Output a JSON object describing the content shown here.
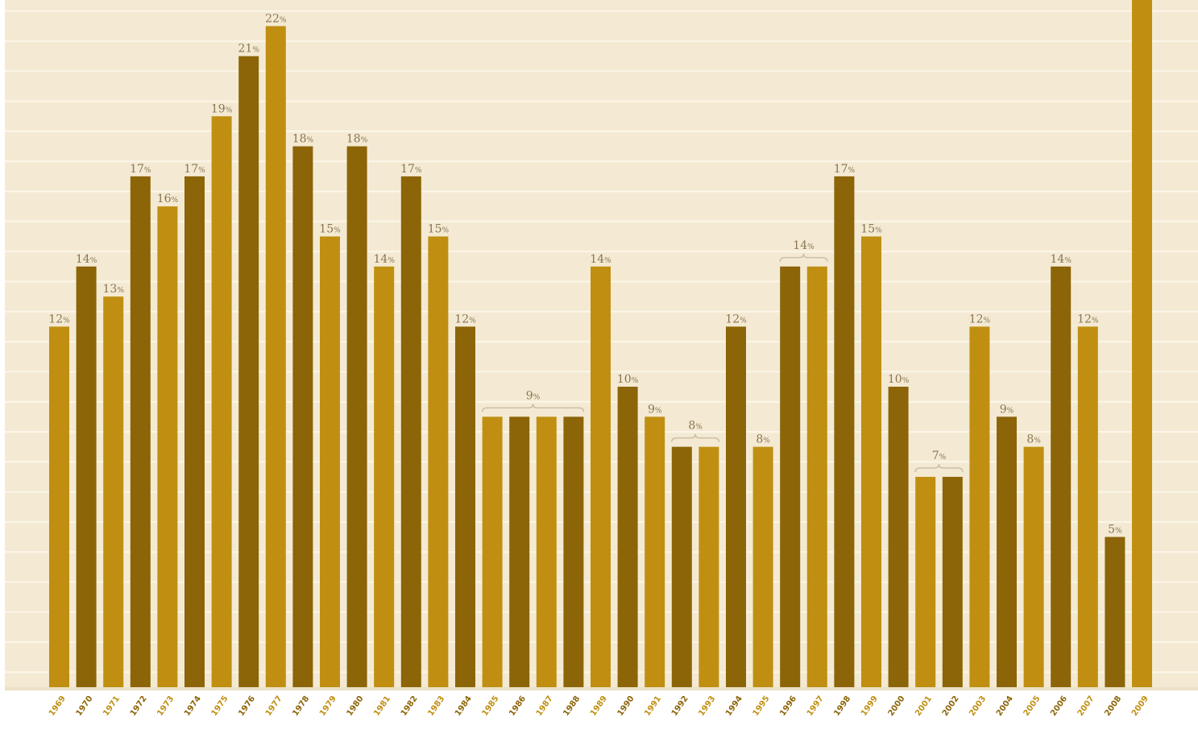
{
  "chart_data": {
    "type": "bar",
    "title": "",
    "xlabel": "",
    "ylabel": "",
    "ylim": [
      0,
      23
    ],
    "grid": true,
    "categories": [
      "1969",
      "1970",
      "1971",
      "1972",
      "1973",
      "1974",
      "1975",
      "1976",
      "1977",
      "1978",
      "1979",
      "1980",
      "1981",
      "1982",
      "1983",
      "1984",
      "1985",
      "1986",
      "1987",
      "1988",
      "1989",
      "1990",
      "1991",
      "1992",
      "1993",
      "1994",
      "1995",
      "1996",
      "1997",
      "1998",
      "1999",
      "2000",
      "2001",
      "2002",
      "2003",
      "2004",
      "2005",
      "2006",
      "2007",
      "2008",
      "2009"
    ],
    "values": [
      12,
      14,
      13,
      17,
      16,
      17,
      19,
      21,
      22,
      18,
      15,
      18,
      14,
      17,
      15,
      12,
      9,
      9,
      9,
      9,
      14,
      10,
      9,
      8,
      8,
      12,
      8,
      14,
      14,
      17,
      15,
      10,
      7,
      7,
      12,
      9,
      8,
      14,
      12,
      5,
      23
    ],
    "value_labels": [
      "12",
      "14",
      "13",
      "17",
      "16",
      "17",
      "19",
      "21",
      "22",
      "18",
      "15",
      "18",
      "14",
      "17",
      "15",
      "12",
      "",
      "",
      "",
      "",
      "14",
      "10",
      "9",
      "",
      "",
      "12",
      "8",
      "",
      "",
      "17",
      "15",
      "10",
      "",
      "",
      "12",
      "9",
      "8",
      "14",
      "12",
      "5",
      ""
    ],
    "label_unit": "%",
    "shades": [
      "light",
      "dark",
      "light",
      "dark",
      "light",
      "dark",
      "light",
      "dark",
      "light",
      "dark",
      "light",
      "dark",
      "light",
      "dark",
      "light",
      "dark",
      "light",
      "dark",
      "light",
      "dark",
      "light",
      "dark",
      "light",
      "dark",
      "light",
      "dark",
      "light",
      "dark",
      "light",
      "dark",
      "light",
      "dark",
      "light",
      "dark",
      "light",
      "dark",
      "light",
      "dark",
      "light",
      "dark",
      "light"
    ],
    "groups": [
      {
        "start": "1985",
        "end": "1988",
        "label": "9"
      },
      {
        "start": "1992",
        "end": "1993",
        "label": "8"
      },
      {
        "start": "1996",
        "end": "1997",
        "label": "14"
      },
      {
        "start": "2001",
        "end": "2002",
        "label": "7"
      }
    ],
    "colors": {
      "background": "#f4ead3",
      "gridline": "#fbf6e9",
      "bar_light": "#c08f12",
      "bar_dark": "#8c6508",
      "label": "#8a7550",
      "brace": "#cbbfa5"
    }
  }
}
